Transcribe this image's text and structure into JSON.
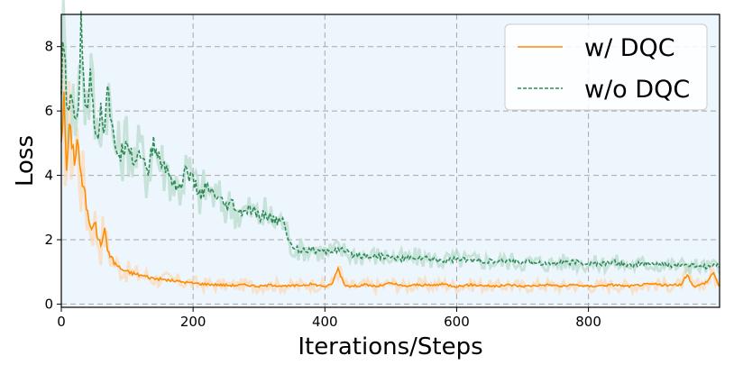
{
  "chart_data": {
    "type": "line",
    "xlabel": "Iterations/Steps",
    "ylabel": "Loss",
    "xlim": [
      0,
      999
    ],
    "ylim": [
      -0.1,
      9.0
    ],
    "xticks": [
      0,
      200,
      400,
      600,
      800
    ],
    "yticks": [
      0,
      2,
      4,
      6,
      8
    ],
    "grid": true,
    "grid_style": "dashed",
    "legend_position": "top-right",
    "background_color": "#eef6fd",
    "series": [
      {
        "name": "w/ DQC",
        "color": "#ff8c00",
        "raw_color": "#fbd9b5",
        "linestyle": "solid",
        "x": [
          0,
          4,
          8,
          12,
          16,
          20,
          25,
          30,
          35,
          40,
          45,
          50,
          55,
          60,
          65,
          70,
          75,
          80,
          90,
          100,
          110,
          120,
          140,
          160,
          180,
          200,
          220,
          240,
          260,
          280,
          300,
          320,
          340,
          360,
          380,
          400,
          410,
          420,
          430,
          440,
          460,
          480,
          500,
          520,
          540,
          560,
          580,
          600,
          620,
          640,
          660,
          680,
          700,
          720,
          740,
          760,
          780,
          800,
          820,
          840,
          860,
          880,
          900,
          920,
          940,
          950,
          960,
          970,
          980,
          990,
          999
        ],
        "values": [
          5.2,
          6.3,
          4.2,
          5.4,
          5.1,
          4.5,
          5.2,
          3.9,
          3.5,
          2.8,
          2.4,
          2.6,
          2.1,
          1.8,
          2.4,
          1.7,
          1.5,
          1.3,
          1.1,
          1.0,
          0.95,
          0.9,
          0.8,
          0.75,
          0.7,
          0.65,
          0.62,
          0.6,
          0.58,
          0.6,
          0.55,
          0.6,
          0.55,
          0.58,
          0.62,
          0.55,
          0.6,
          1.1,
          0.6,
          0.55,
          0.6,
          0.55,
          0.65,
          0.55,
          0.6,
          0.58,
          0.62,
          0.55,
          0.6,
          0.58,
          0.55,
          0.6,
          0.55,
          0.58,
          0.6,
          0.55,
          0.6,
          0.55,
          0.58,
          0.6,
          0.55,
          0.6,
          0.62,
          0.58,
          0.6,
          0.9,
          0.55,
          0.6,
          0.7,
          1.0,
          0.5
        ]
      },
      {
        "name": "w/o DQC",
        "color": "#2e8b57",
        "raw_color": "#b7dcc9",
        "linestyle": "dashed",
        "x": [
          0,
          3,
          6,
          10,
          15,
          20,
          25,
          30,
          35,
          40,
          45,
          50,
          55,
          60,
          65,
          70,
          75,
          80,
          90,
          100,
          110,
          120,
          130,
          140,
          150,
          160,
          170,
          180,
          190,
          200,
          210,
          220,
          230,
          240,
          250,
          260,
          270,
          280,
          290,
          300,
          310,
          320,
          330,
          340,
          345,
          350,
          360,
          380,
          400,
          420,
          440,
          460,
          480,
          500,
          520,
          540,
          560,
          580,
          600,
          620,
          640,
          660,
          680,
          700,
          720,
          740,
          760,
          780,
          800,
          820,
          840,
          860,
          880,
          900,
          920,
          940,
          960,
          980,
          999
        ],
        "values": [
          6.5,
          8.3,
          7.2,
          5.8,
          6.3,
          6.0,
          5.7,
          8.6,
          6.5,
          6.3,
          7.1,
          5.8,
          5.2,
          6.0,
          5.4,
          7.0,
          5.6,
          5.0,
          4.6,
          5.2,
          4.4,
          4.8,
          4.0,
          5.0,
          4.4,
          4.2,
          3.8,
          3.6,
          4.2,
          3.8,
          3.4,
          3.6,
          3.4,
          3.2,
          3.0,
          3.1,
          2.8,
          2.9,
          2.9,
          2.7,
          2.8,
          2.6,
          2.6,
          2.5,
          1.9,
          1.8,
          1.7,
          1.7,
          1.6,
          1.7,
          1.55,
          1.5,
          1.5,
          1.45,
          1.4,
          1.45,
          1.4,
          1.35,
          1.4,
          1.35,
          1.35,
          1.3,
          1.35,
          1.3,
          1.3,
          1.25,
          1.3,
          1.3,
          1.25,
          1.25,
          1.3,
          1.2,
          1.25,
          1.25,
          1.2,
          1.2,
          1.2,
          1.15,
          1.2
        ]
      }
    ]
  }
}
